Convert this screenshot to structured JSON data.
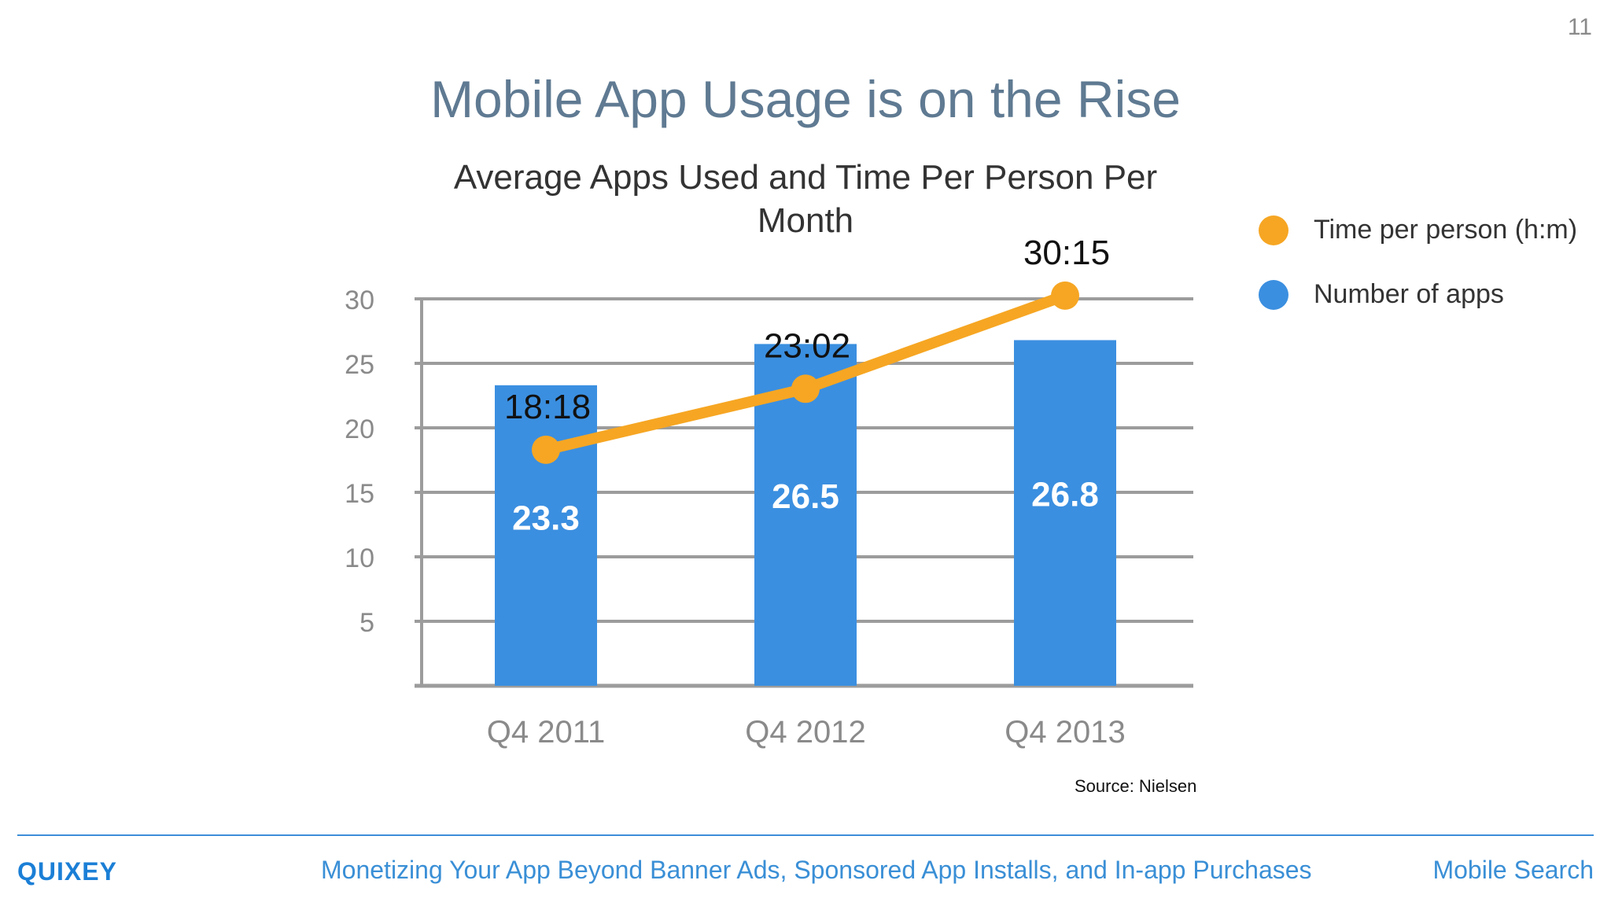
{
  "slide": {
    "number": "11",
    "title": "Mobile App Usage is on the Rise"
  },
  "footer": {
    "logo_text": "QUIXEY",
    "center_text": "Monetizing Your App Beyond Banner Ads, Sponsored App Installs, and In-app Purchases",
    "right_text": "Mobile Search"
  },
  "colors": {
    "title": "#5f7a92",
    "bar": "#3b8fe0",
    "line": "#f6a623",
    "footer_accent": "#3a8fd6"
  },
  "chart_data": {
    "type": "bar",
    "title_lines": [
      "Average Apps Used and Time Per Person Per",
      "Month"
    ],
    "categories": [
      "Q4 2011",
      "Q4 2012",
      "Q4 2013"
    ],
    "ylim": [
      0,
      30
    ],
    "yticks": [
      5,
      10,
      15,
      20,
      25,
      30
    ],
    "grid": true,
    "legend_position": "right",
    "source": "Source: Nielsen",
    "series": [
      {
        "name": "Number of apps",
        "type": "bar",
        "color": "#3b8fe0",
        "values": [
          23.3,
          26.5,
          26.8
        ],
        "labels": [
          "23.3",
          "26.5",
          "26.8"
        ]
      },
      {
        "name": "Time per person (h:m)",
        "type": "line",
        "color": "#f6a623",
        "values": [
          18.3,
          23.03,
          30.25
        ],
        "labels": [
          "18:18",
          "23:02",
          "30:15"
        ]
      }
    ]
  }
}
